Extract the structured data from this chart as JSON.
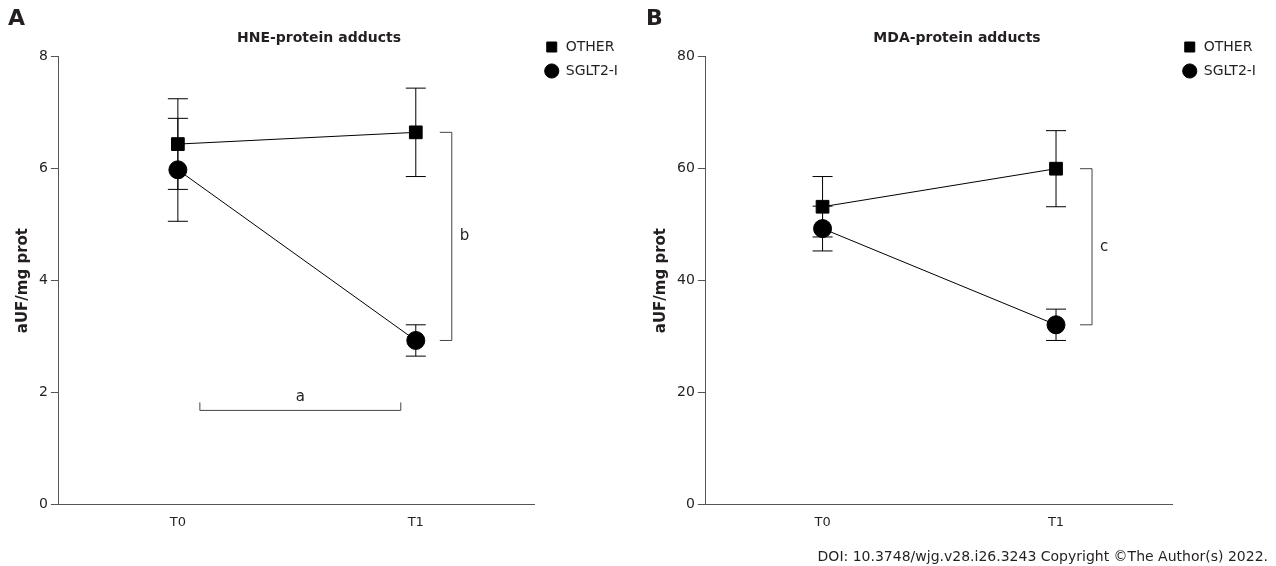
{
  "chart_data": [
    {
      "type": "line",
      "title": "HNE-protein adducts",
      "ylabel": "aUF/mg prot",
      "categories": [
        "T0",
        "T1"
      ],
      "series": [
        {
          "name": "OTHER",
          "color": "#000000",
          "marker": "square",
          "values": [
            6.44,
            6.65
          ],
          "errors": [
            0.81,
            0.79
          ]
        },
        {
          "name": "SGLT2-I",
          "color": "#000000",
          "marker": "circle",
          "values": [
            5.98,
            2.93
          ],
          "errors": [
            0.92,
            0.28
          ]
        }
      ],
      "ylim": [
        0,
        8
      ],
      "yticks": [
        0,
        2,
        4,
        6,
        8
      ],
      "legend": "top right",
      "grid": false,
      "annotations": [
        "A",
        "b",
        "a"
      ]
    },
    {
      "type": "line",
      "title": "MDA-protein adducts",
      "ylabel": "aUF/mg prot",
      "categories": [
        "T0",
        "T1"
      ],
      "series": [
        {
          "name": "OTHER",
          "color": "#000000",
          "marker": "square",
          "values": [
            53.2,
            60
          ],
          "errors": [
            5.4,
            6.8
          ]
        },
        {
          "name": "SGLT2-I",
          "color": "#000000",
          "marker": "circle",
          "values": [
            49.3,
            32.1
          ],
          "errors": [
            4.0,
            2.8
          ]
        }
      ],
      "ylim": [
        0,
        80
      ],
      "yticks": [
        0,
        20,
        40,
        60,
        80
      ],
      "legend": "top right",
      "grid": false,
      "annotations": [
        "B",
        "c",
        "DOI: 10.3748/wjg.v28.i26.3243 Copyright ©The Author(s) 2022."
      ]
    }
  ]
}
